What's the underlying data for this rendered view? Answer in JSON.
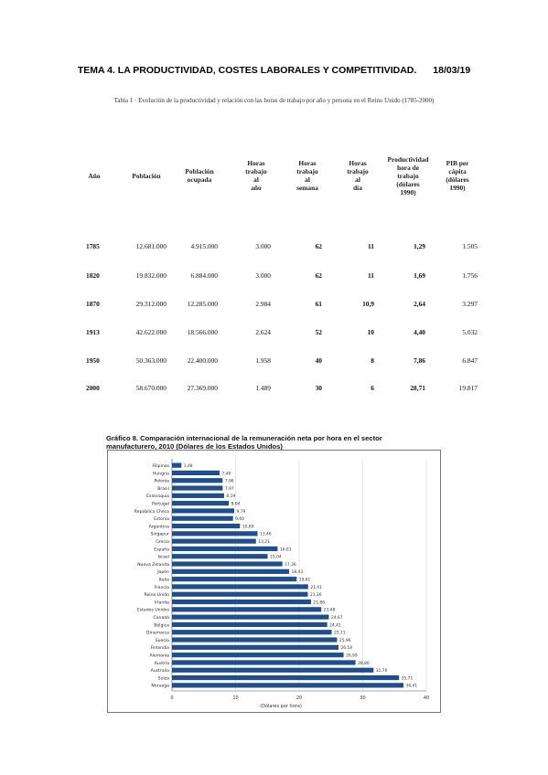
{
  "header": {
    "title": "TEMA 4. LA PRODUCTIVIDAD, COSTES LABORALES Y COMPETITIVIDAD.",
    "date": "18/03/19"
  },
  "table": {
    "caption": "Tabla 1 · Evolución de la productividad y relación con las horas de trabajo por año y persona en el Reino Unido (1785-2000)",
    "columns": [
      "Año",
      "Población",
      "Población\nocupada",
      "Horas\ntrabajo\nal\naño",
      "Horas\ntrabajo\nal\nsemana",
      "Horas\ntrabajo\nal\ndía",
      "Productividad\nhora de\ntrabajo\n(dólares\n1990)",
      "PIB per\ncápita\n(dólares\n1990)"
    ],
    "rows": [
      [
        "1785",
        "12.681.000",
        "4.915.000",
        "3.000",
        "62",
        "11",
        "1,29",
        "1.505"
      ],
      [
        "1820",
        "19.832.000",
        "6.884.000",
        "3.000",
        "62",
        "11",
        "1,69",
        "1.756"
      ],
      [
        "1870",
        "29.312.000",
        "12.285.000",
        "2.984",
        "61",
        "10,9",
        "2,64",
        "3.297"
      ],
      [
        "1913",
        "42.622.000",
        "18.566.000",
        "2.624",
        "52",
        "10",
        "4,40",
        "5.032"
      ],
      [
        "1950",
        "50.363.000",
        "22.400.000",
        "1.958",
        "40",
        "8",
        "7,86",
        "6.847"
      ],
      [
        "2000",
        "58.670.000",
        "27.369.000",
        "1.489",
        "30",
        "6",
        "28,71",
        "19.817"
      ]
    ]
  },
  "chart": {
    "title_line1": "Gráfico 8.    Comparación internacional de la remuneración neta por hora en el sector",
    "title_line2": "manufacturero, 2010 (Dólares de los Estados Unidos)",
    "xlabel": "(Dólares por hora)",
    "bar_color": "#1f4e8c"
  },
  "chart_data": {
    "type": "bar",
    "orientation": "horizontal",
    "title": "Comparación internacional de la remuneración neta por hora en el sector manufacturero, 2010 (Dólares de los Estados Unidos)",
    "xlabel": "(Dólares por hora)",
    "xlim": [
      0,
      40
    ],
    "xticks": [
      "0",
      "10",
      "20",
      "30",
      "40"
    ],
    "categories": [
      "Filipinas",
      "Hungría",
      "Polonia",
      "Brasil",
      "Eslovaquia",
      "Portugal",
      "República Checa",
      "Estonia",
      "Argentina",
      "Singapur",
      "Grecia",
      "España",
      "Israel",
      "Nueva Zelanda",
      "Japón",
      "Italia",
      "Francia",
      "Reino Unido",
      "Irlanda",
      "Estados Unidos",
      "Canadá",
      "Bélgica",
      "Dinamarca",
      "Suecia",
      "Finlandia",
      "Alemania",
      "Austria",
      "Australia",
      "Suiza",
      "Noruega"
    ],
    "values": [
      1.48,
      7.49,
      7.96,
      7.97,
      8.19,
      8.94,
      9.79,
      9.6,
      10.69,
      13.46,
      13.21,
      16.61,
      15.04,
      17.36,
      18.43,
      19.61,
      21.41,
      21.36,
      21.86,
      23.48,
      24.67,
      24.41,
      25.11,
      25.96,
      26.18,
      26.99,
      28.86,
      31.7,
      35.71,
      36.41
    ],
    "data_labels": [
      "1,48",
      "7,49",
      "7,96",
      "7,97",
      "8,19",
      "8,94",
      "9,79",
      "9,60",
      "10,69",
      "13,46",
      "13,21",
      "16,61",
      "15,04",
      "17,36",
      "18,43",
      "19,61",
      "21,41",
      "21,36",
      "21,86",
      "23,48",
      "24,67",
      "24,41",
      "25,11",
      "25,96",
      "26,18",
      "26,99",
      "28,86",
      "31,70",
      "35,71",
      "36,41"
    ]
  }
}
